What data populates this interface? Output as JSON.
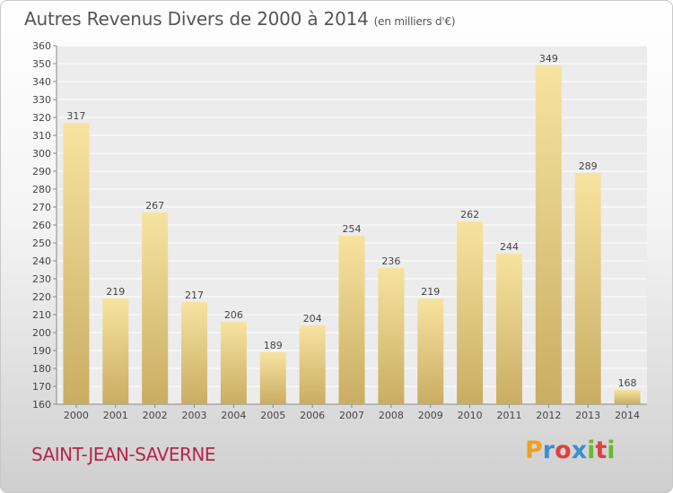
{
  "header": {
    "title": "Autres Revenus Divers de 2000 à 2014",
    "subtitle": "(en milliers d'€)"
  },
  "footer": {
    "commune": "SAINT-JEAN-SAVERNE",
    "logo": "Proxiti"
  },
  "colors": {
    "bar_light": "#f7e3a0",
    "bar_dark": "#c9ad62",
    "commune_text": "#b5264a",
    "axis_text": "#444444"
  },
  "chart_data": {
    "type": "bar",
    "categories": [
      "2000",
      "2001",
      "2002",
      "2003",
      "2004",
      "2005",
      "2006",
      "2007",
      "2008",
      "2009",
      "2010",
      "2011",
      "2012",
      "2013",
      "2014"
    ],
    "values": [
      317,
      219,
      267,
      217,
      206,
      189,
      204,
      254,
      236,
      219,
      262,
      244,
      349,
      289,
      168
    ],
    "title": "Autres Revenus Divers de 2000 à 2014",
    "subtitle": "(en milliers d'€)",
    "xlabel": "",
    "ylabel": "",
    "ylim": [
      160,
      360
    ],
    "yticks": [
      160,
      170,
      180,
      190,
      200,
      210,
      220,
      230,
      240,
      250,
      260,
      270,
      280,
      290,
      300,
      310,
      320,
      330,
      340,
      350,
      360
    ],
    "grid": true,
    "data_labels": true
  }
}
